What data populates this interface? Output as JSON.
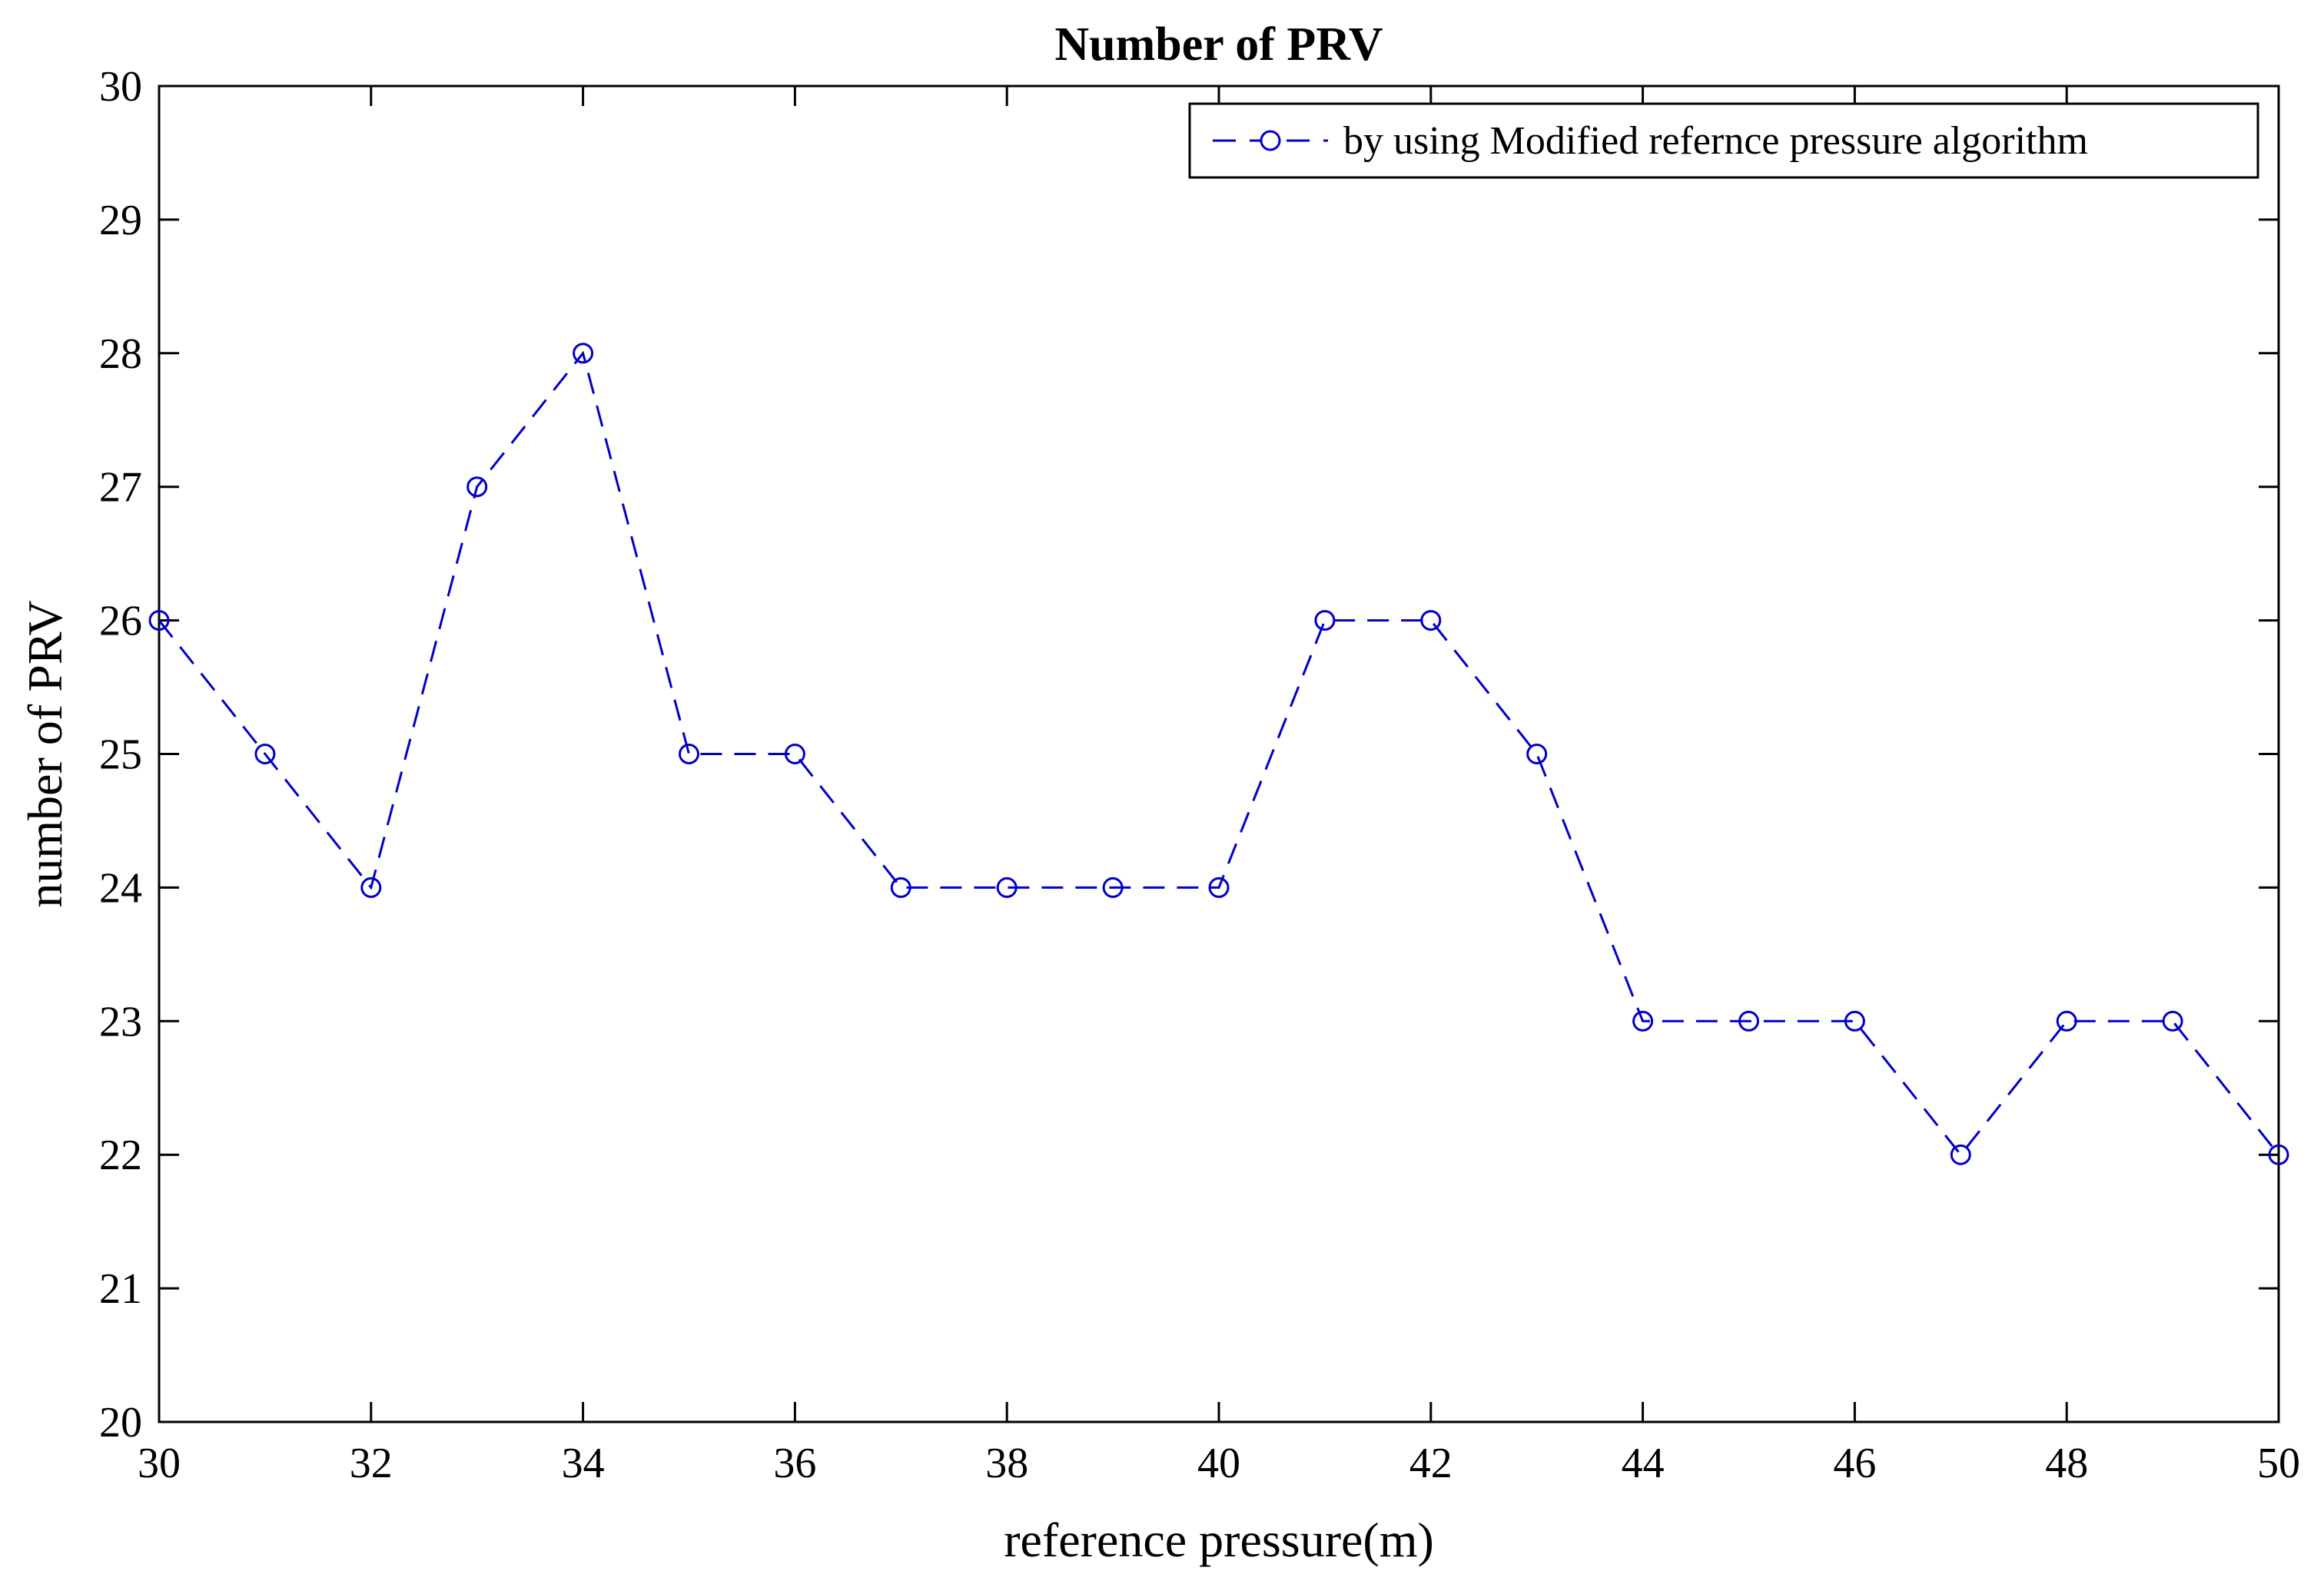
{
  "chart_data": {
    "type": "line",
    "title": "Number of PRV",
    "xlabel": "reference pressure(m)",
    "ylabel": "number of PRV",
    "xlim": [
      30,
      50
    ],
    "ylim": [
      20,
      30
    ],
    "xticks": [
      30,
      32,
      34,
      36,
      38,
      40,
      42,
      44,
      46,
      48,
      50
    ],
    "yticks": [
      20,
      21,
      22,
      23,
      24,
      25,
      26,
      27,
      28,
      29,
      30
    ],
    "grid": false,
    "legend_position": "top-right",
    "series": [
      {
        "name": "by using Modified refernce pressure algorithm",
        "color": "#0000cc",
        "line_style": "dashed",
        "marker": "circle",
        "x": [
          30,
          31,
          32,
          33,
          34,
          35,
          36,
          37,
          38,
          39,
          40,
          41,
          42,
          43,
          44,
          45,
          46,
          47,
          48,
          49,
          50
        ],
        "y": [
          26,
          25,
          24,
          27,
          28,
          25,
          25,
          24,
          24,
          24,
          24,
          26,
          26,
          25,
          23,
          23,
          23,
          22,
          23,
          23,
          22
        ]
      }
    ]
  }
}
